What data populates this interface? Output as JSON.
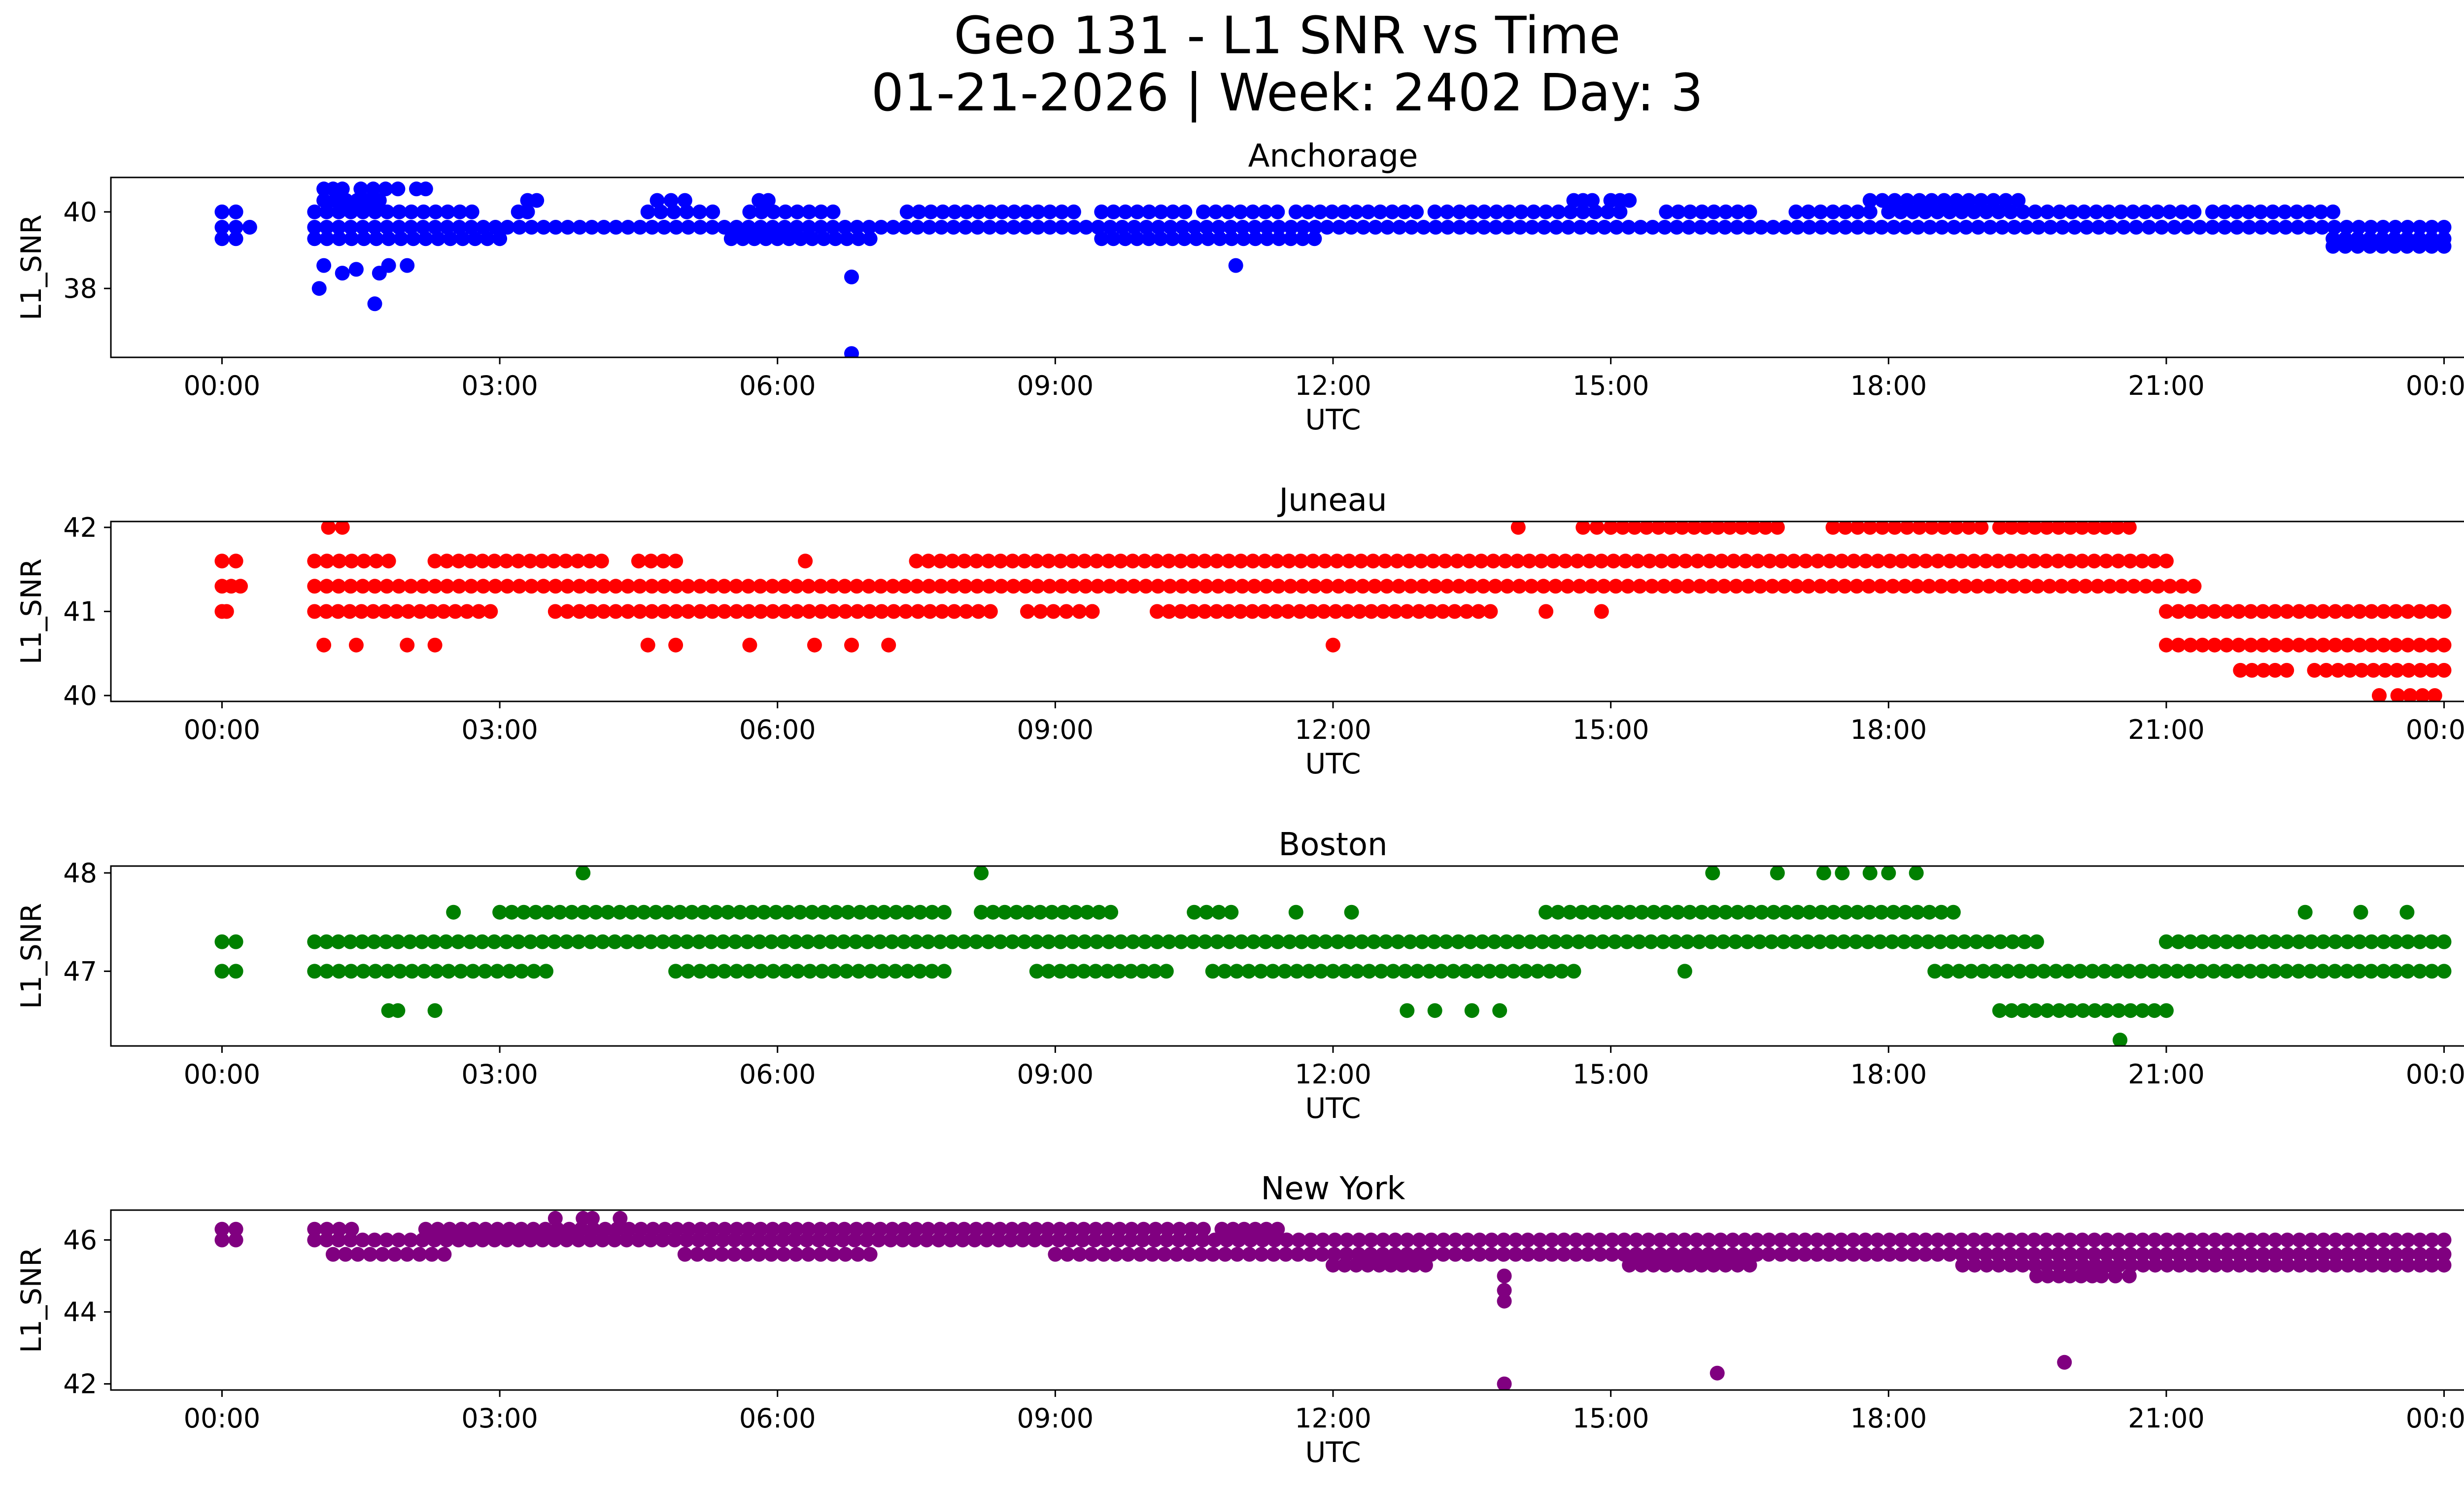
{
  "chart_data": {
    "type": "scatter",
    "title": "Geo 131 - L1 SNR vs Time",
    "subtitle": "01-21-2026 | Week: 2402 Day: 3",
    "x_ticks": [
      "00:00",
      "03:00",
      "06:00",
      "09:00",
      "12:00",
      "15:00",
      "18:00",
      "21:00",
      "00:00"
    ],
    "x_range_hours": [
      -1.2,
      25.2
    ],
    "panels": [
      {
        "name": "Anchorage",
        "color": "#0000ff",
        "xlabel": "UTC",
        "ylabel": "L1_SNR",
        "ylim": [
          36.2,
          40.9
        ],
        "yticks": [
          38,
          40
        ],
        "levels": [
          {
            "y": 40.0,
            "ranges": [
              [
                0.0,
                0.15
              ],
              [
                1.0,
                2.7
              ],
              [
                3.2,
                3.3
              ],
              [
                4.6,
                5.3
              ],
              [
                5.7,
                6.6
              ],
              [
                7.4,
                9.2
              ],
              [
                9.5,
                10.4
              ],
              [
                10.6,
                11.4
              ],
              [
                11.6,
                12.9
              ],
              [
                13.1,
                15.1
              ],
              [
                15.6,
                16.5
              ],
              [
                17.0,
                17.8
              ],
              [
                18.0,
                21.3
              ],
              [
                21.5,
                22.8
              ]
            ]
          },
          {
            "y": 39.6,
            "ranges": [
              [
                0.0,
                0.3
              ],
              [
                1.0,
                20.4
              ],
              [
                20.4,
                21.5
              ],
              [
                21.5,
                24.0
              ]
            ]
          },
          {
            "y": 39.3,
            "ranges": [
              [
                0.0,
                0.15
              ],
              [
                1.0,
                3.0
              ],
              [
                5.5,
                7.0
              ],
              [
                9.5,
                11.8
              ],
              [
                22.8,
                24.0
              ]
            ]
          },
          {
            "y": 39.1,
            "ranges": [
              [
                22.8,
                24.0
              ]
            ]
          },
          {
            "y": 40.3,
            "ranges": [
              [
                1.1,
                1.7
              ],
              [
                3.3,
                3.4
              ],
              [
                4.7,
                5.0
              ],
              [
                5.8,
                5.9
              ],
              [
                14.6,
                14.8
              ],
              [
                15.0,
                15.2
              ],
              [
                17.8,
                19.4
              ]
            ]
          },
          {
            "y": 40.6,
            "ranges": [
              [
                1.1,
                1.3
              ],
              [
                1.5,
                1.9
              ],
              [
                2.1,
                2.2
              ]
            ]
          }
        ],
        "outliers": [
          [
            1.05,
            38.0
          ],
          [
            1.1,
            38.6
          ],
          [
            1.3,
            38.4
          ],
          [
            1.45,
            38.5
          ],
          [
            1.65,
            37.6
          ],
          [
            1.7,
            38.4
          ],
          [
            1.8,
            38.6
          ],
          [
            2.0,
            38.6
          ],
          [
            6.8,
            38.3
          ],
          [
            6.8,
            36.3
          ],
          [
            10.95,
            38.6
          ]
        ]
      },
      {
        "name": "Juneau",
        "color": "#ff0000",
        "xlabel": "UTC",
        "ylabel": "L1_SNR",
        "ylim": [
          39.93,
          42.07
        ],
        "yticks": [
          40,
          41,
          42
        ],
        "levels": [
          {
            "y": 41.6,
            "ranges": [
              [
                0.0,
                0.15
              ],
              [
                1.0,
                1.8
              ],
              [
                2.3,
                4.1
              ],
              [
                4.5,
                4.9
              ],
              [
                7.5,
                21.0
              ]
            ]
          },
          {
            "y": 41.3,
            "ranges": [
              [
                0.0,
                0.2
              ],
              [
                1.0,
                21.3
              ]
            ]
          },
          {
            "y": 41.0,
            "ranges": [
              [
                0.0,
                0.05
              ],
              [
                1.0,
                2.9
              ],
              [
                3.6,
                8.3
              ],
              [
                8.7,
                9.4
              ],
              [
                10.1,
                13.7
              ],
              [
                21.0,
                24.0
              ]
            ]
          },
          {
            "y": 40.6,
            "ranges": [
              [
                21.0,
                24.0
              ]
            ]
          },
          {
            "y": 40.3,
            "ranges": [
              [
                21.8,
                22.3
              ],
              [
                22.6,
                24.0
              ]
            ]
          },
          {
            "y": 42.0,
            "ranges": [
              [
                14.7,
                15.0
              ],
              [
                15.0,
                16.8
              ],
              [
                17.4,
                19.0
              ],
              [
                19.2,
                20.6
              ]
            ]
          },
          {
            "y": 40.0,
            "ranges": [
              [
                23.3,
                23.3
              ],
              [
                23.5,
                23.9
              ]
            ]
          }
        ],
        "outliers": [
          [
            1.15,
            42.0
          ],
          [
            1.3,
            42.0
          ],
          [
            14.0,
            42.0
          ],
          [
            1.1,
            40.6
          ],
          [
            1.45,
            40.6
          ],
          [
            2.0,
            40.6
          ],
          [
            2.3,
            40.6
          ],
          [
            4.6,
            40.6
          ],
          [
            4.9,
            40.6
          ],
          [
            5.7,
            40.6
          ],
          [
            6.4,
            40.6
          ],
          [
            6.8,
            40.6
          ],
          [
            7.2,
            40.6
          ],
          [
            12.0,
            40.6
          ],
          [
            6.3,
            41.6
          ],
          [
            14.9,
            41.0
          ],
          [
            9.4,
            41.0
          ],
          [
            14.3,
            41.0
          ],
          [
            21.3,
            41.3
          ]
        ]
      },
      {
        "name": "Boston",
        "color": "#008000",
        "xlabel": "UTC",
        "ylabel": "L1_SNR",
        "ylim": [
          46.24,
          48.07
        ],
        "yticks": [
          47,
          48
        ],
        "levels": [
          {
            "y": 47.3,
            "ranges": [
              [
                0.0,
                0.15
              ],
              [
                1.0,
                1.9
              ],
              [
                1.9,
                19.6
              ],
              [
                21.0,
                24.0
              ]
            ]
          },
          {
            "y": 47.0,
            "ranges": [
              [
                0.0,
                0.15
              ],
              [
                1.0,
                3.5
              ],
              [
                4.9,
                7.8
              ],
              [
                8.8,
                10.2
              ],
              [
                10.7,
                14.6
              ],
              [
                18.5,
                24.0
              ]
            ]
          },
          {
            "y": 47.6,
            "ranges": [
              [
                3.0,
                7.8
              ],
              [
                8.2,
                9.6
              ],
              [
                10.5,
                10.9
              ],
              [
                14.3,
                18.7
              ]
            ]
          },
          {
            "y": 46.6,
            "ranges": [
              [
                19.2,
                21.0
              ]
            ]
          }
        ],
        "outliers": [
          [
            3.9,
            48.0
          ],
          [
            8.2,
            48.0
          ],
          [
            16.1,
            48.0
          ],
          [
            16.8,
            48.0
          ],
          [
            17.3,
            48.0
          ],
          [
            17.5,
            48.0
          ],
          [
            17.8,
            48.0
          ],
          [
            18.0,
            48.0
          ],
          [
            18.3,
            48.0
          ],
          [
            2.5,
            47.6
          ],
          [
            11.6,
            47.6
          ],
          [
            12.2,
            47.6
          ],
          [
            22.5,
            47.6
          ],
          [
            23.1,
            47.6
          ],
          [
            23.6,
            47.6
          ],
          [
            1.8,
            46.6
          ],
          [
            1.9,
            46.6
          ],
          [
            2.3,
            46.6
          ],
          [
            12.8,
            46.6
          ],
          [
            13.1,
            46.6
          ],
          [
            13.5,
            46.6
          ],
          [
            13.8,
            46.6
          ],
          [
            20.5,
            46.3
          ],
          [
            15.8,
            47.0
          ]
        ]
      },
      {
        "name": "New York",
        "color": "#800080",
        "xlabel": "UTC",
        "ylabel": "L1_SNR",
        "ylim": [
          41.83,
          46.83
        ],
        "yticks": [
          42,
          44,
          46
        ],
        "levels": [
          {
            "y": 46.3,
            "ranges": [
              [
                0.0,
                0.15
              ],
              [
                1.0,
                1.4
              ],
              [
                2.2,
                10.6
              ],
              [
                10.8,
                11.4
              ]
            ]
          },
          {
            "y": 46.0,
            "ranges": [
              [
                0.0,
                0.15
              ],
              [
                1.0,
                11.5
              ],
              [
                11.5,
                24.0
              ]
            ]
          },
          {
            "y": 45.6,
            "ranges": [
              [
                1.2,
                2.4
              ],
              [
                5.0,
                7.0
              ],
              [
                9.0,
                12.8
              ],
              [
                12.8,
                24.0
              ]
            ]
          },
          {
            "y": 45.3,
            "ranges": [
              [
                12.0,
                13.0
              ],
              [
                15.2,
                16.5
              ],
              [
                18.8,
                24.0
              ]
            ]
          },
          {
            "y": 45.0,
            "ranges": [
              [
                19.6,
                20.2
              ],
              [
                20.3,
                20.6
              ]
            ]
          }
        ],
        "outliers": [
          [
            3.6,
            46.6
          ],
          [
            3.9,
            46.6
          ],
          [
            4.0,
            46.6
          ],
          [
            4.3,
            46.6
          ],
          [
            13.85,
            45.0
          ],
          [
            13.85,
            44.6
          ],
          [
            13.85,
            44.3
          ],
          [
            13.85,
            42.0
          ],
          [
            16.15,
            42.3
          ],
          [
            19.9,
            42.6
          ]
        ]
      }
    ]
  }
}
